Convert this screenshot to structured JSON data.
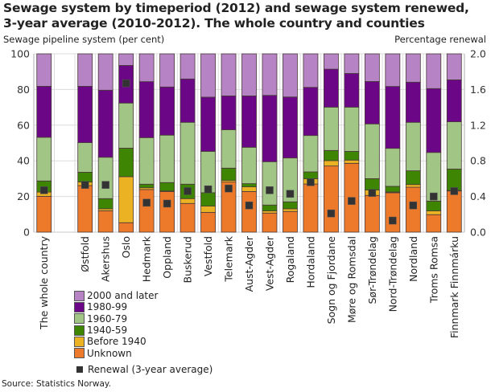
{
  "chart_data": {
    "type": "bar",
    "stacked": true,
    "title": "Sewage system by timeperiod (2012) and sewage system renewed, 3-year average (2010-2012). The whole country and counties",
    "ylabel": "Sewage pipeline system (per cent)",
    "y2label": "Percentage renewal",
    "ylim": [
      0,
      100
    ],
    "y2lim": [
      0,
      2.0
    ],
    "yticks": [
      "0",
      "20",
      "40",
      "60",
      "80",
      "100"
    ],
    "y2ticks": [
      "0.0",
      "0.4",
      "0.8",
      "1.2",
      "1.6",
      "2.0"
    ],
    "grid": true,
    "legend_position": "bottom-left",
    "categories": [
      "The whole country",
      "",
      "Østfold",
      "Akershus",
      "Oslo",
      "Hedmark",
      "Oppland",
      "Buskerud",
      "Vestfold",
      "Telemark",
      "Aust-Agder",
      "Vest-Agder",
      "Rogaland",
      "Hordaland",
      "Sogn og Fjordane",
      "Møre og Romsdal",
      "Sør-Trøndelag",
      "Nord-Trøndelag",
      "Nordland",
      "Troms Romsa",
      "Finnmark Finnmárku"
    ],
    "series": [
      {
        "name": "Unknown",
        "color": "#ec7a2a",
        "values": [
          20.1,
          null,
          26.1,
          12.0,
          5.3,
          23.9,
          22.8,
          16.1,
          11.1,
          28.1,
          22.8,
          10.7,
          11.6,
          27.0,
          37.1,
          38.6,
          20.6,
          22.1,
          25.2,
          9.8,
          23.1
        ]
      },
      {
        "name": "Before 1940",
        "color": "#ebb323",
        "values": [
          2.4,
          null,
          2.0,
          1.1,
          25.8,
          1.0,
          0.3,
          2.7,
          3.5,
          0.9,
          2.6,
          1.2,
          1.5,
          2.9,
          3.0,
          1.8,
          3.0,
          0.4,
          1.5,
          2.1,
          0.3
        ]
      },
      {
        "name": "1940-59",
        "color": "#3e8504",
        "values": [
          6.2,
          null,
          5.5,
          5.7,
          16.0,
          2.0,
          4.7,
          8.1,
          7.5,
          6.9,
          1.8,
          3.3,
          3.9,
          3.9,
          5.7,
          4.9,
          6.4,
          3.2,
          7.7,
          5.5,
          12.0
        ]
      },
      {
        "name": "1960-79",
        "color": "#a0c585",
        "values": [
          24.5,
          null,
          16.6,
          23.2,
          25.3,
          26.1,
          26.6,
          34.7,
          23.2,
          21.5,
          20.4,
          24.3,
          24.6,
          20.4,
          24.3,
          24.8,
          30.7,
          21.3,
          27.2,
          27.3,
          26.5
        ]
      },
      {
        "name": "1980-99",
        "color": "#6b0787",
        "values": [
          28.6,
          null,
          31.6,
          37.6,
          21.1,
          31.4,
          27.0,
          24.3,
          30.4,
          19.0,
          28.8,
          37.2,
          34.2,
          27.0,
          21.3,
          18.9,
          23.8,
          34.7,
          22.5,
          35.8,
          23.5
        ]
      },
      {
        "name": "2000 and later",
        "color": "#b683c4",
        "values": [
          18.2,
          null,
          18.2,
          20.4,
          6.5,
          15.6,
          18.6,
          14.1,
          24.3,
          23.6,
          23.6,
          23.3,
          24.2,
          18.8,
          8.6,
          11.0,
          15.5,
          18.3,
          15.9,
          19.5,
          14.6
        ]
      }
    ],
    "renewal": {
      "name": "Renewal (3-year average)",
      "color": "#333333",
      "axis": "right",
      "values": [
        0.47,
        null,
        0.53,
        0.53,
        1.67,
        0.33,
        0.32,
        0.46,
        0.48,
        0.49,
        0.3,
        0.47,
        0.43,
        0.56,
        0.21,
        0.35,
        0.44,
        0.13,
        0.3,
        0.4,
        0.46
      ]
    }
  },
  "legend": {
    "items": [
      {
        "label": "2000 and later",
        "color": "#b683c4"
      },
      {
        "label": "1980-99",
        "color": "#6b0787"
      },
      {
        "label": "1960-79",
        "color": "#a0c585"
      },
      {
        "label": "1940-59",
        "color": "#3e8504"
      },
      {
        "label": "Before 1940",
        "color": "#ebb323"
      },
      {
        "label": "Unknown",
        "color": "#ec7a2a"
      }
    ],
    "marker_label": "Renewal (3-year average)"
  },
  "source": "Source: Statistics Norway."
}
